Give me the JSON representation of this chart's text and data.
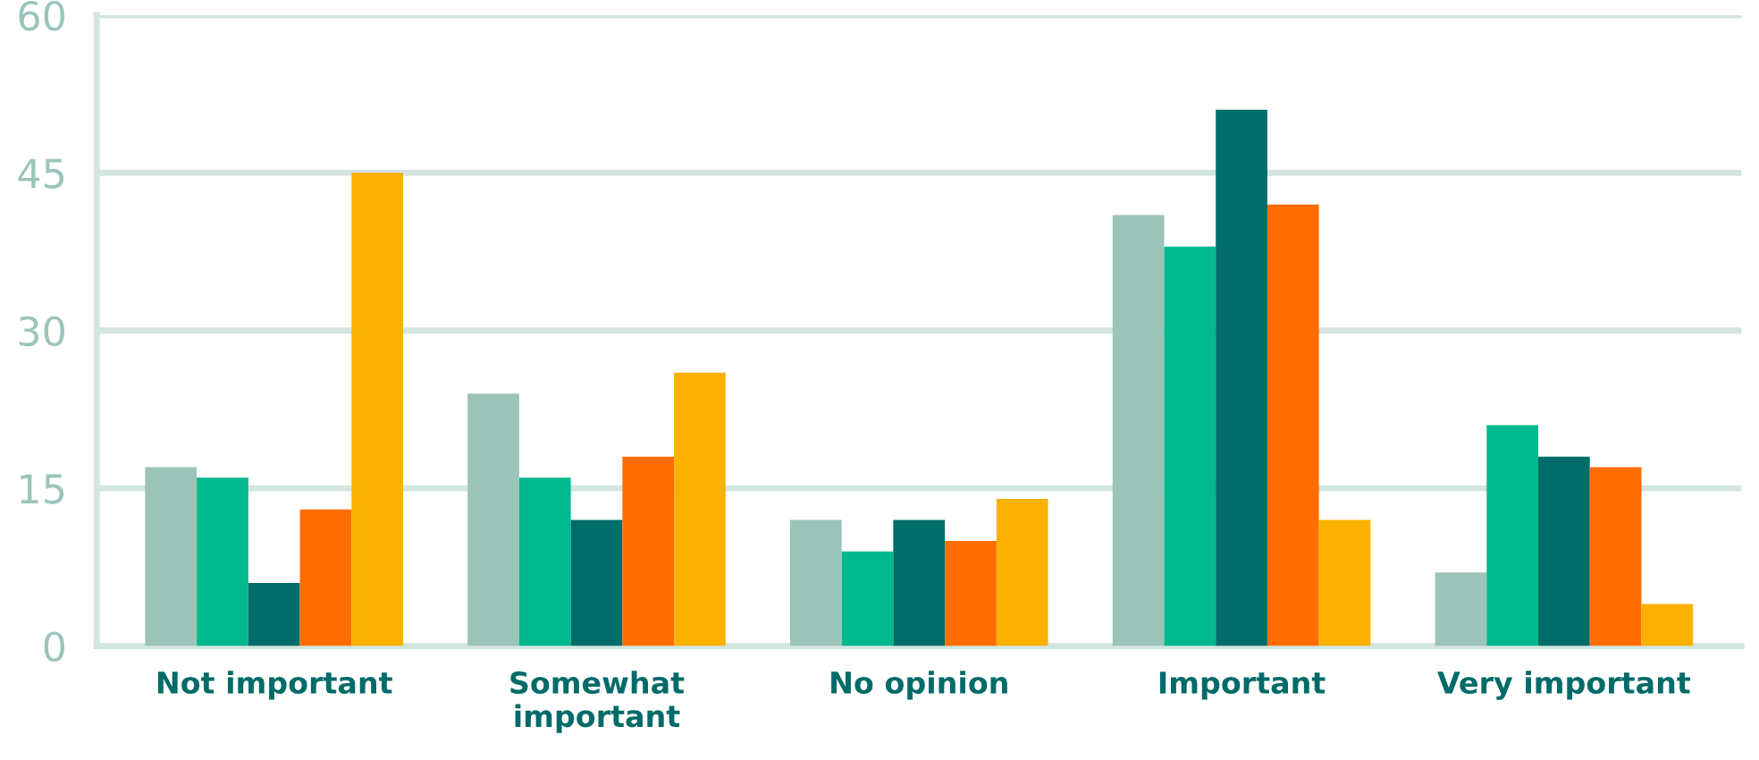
{
  "chart_data": {
    "type": "bar",
    "categories": [
      "Not important",
      "Somewhat\nimportant",
      "No opinion",
      "Important",
      "Very important"
    ],
    "series": [
      {
        "color": "#9bc4b9",
        "values": [
          17,
          24,
          12,
          41,
          7
        ]
      },
      {
        "color": "#00b98e",
        "values": [
          16,
          16,
          9,
          38,
          21
        ]
      },
      {
        "color": "#006d6a",
        "values": [
          6,
          12,
          12,
          51,
          18
        ]
      },
      {
        "color": "#ff6d00",
        "values": [
          13,
          18,
          10,
          42,
          17
        ]
      },
      {
        "color": "#fbb100",
        "values": [
          45,
          26,
          14,
          12,
          4
        ]
      }
    ],
    "ylim": [
      0,
      60
    ],
    "yticks": [
      0,
      15,
      30,
      45,
      60
    ],
    "grid": "y"
  }
}
